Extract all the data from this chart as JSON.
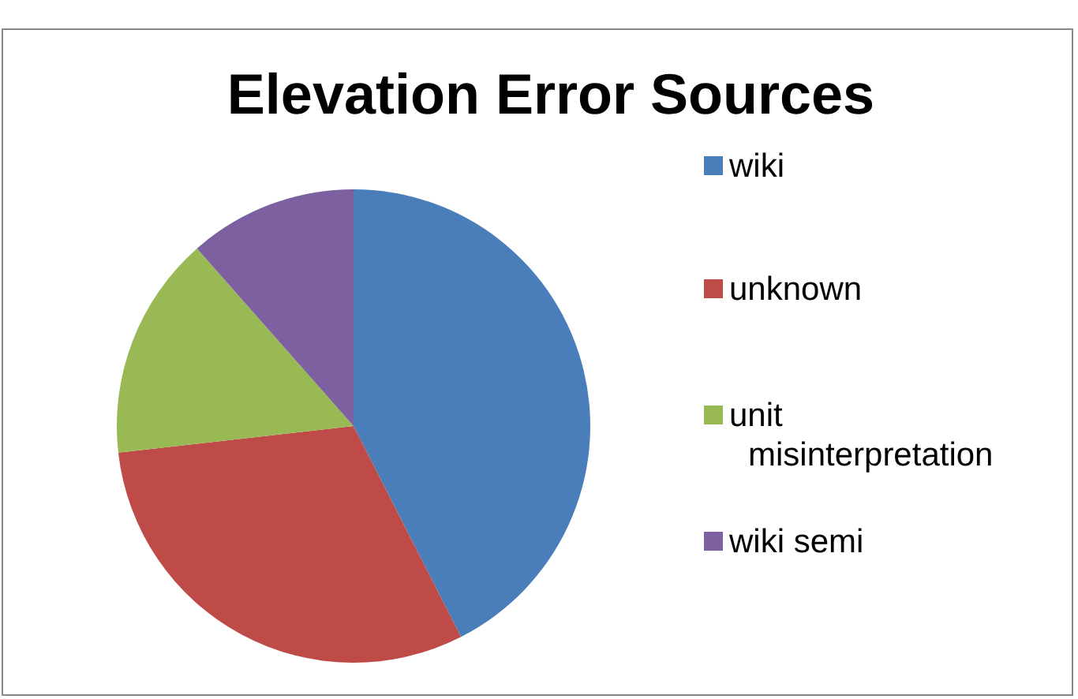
{
  "chart_data": {
    "type": "pie",
    "title": "Elevation Error Sources",
    "categories": [
      "wiki",
      "unknown",
      "unit misinterpretation",
      "wiki semi"
    ],
    "values": [
      42.5,
      30.7,
      15.3,
      11.5
    ],
    "colors": [
      "#4a7ebb",
      "#be4b48",
      "#98b954",
      "#7d60a0"
    ],
    "legend": "right"
  }
}
